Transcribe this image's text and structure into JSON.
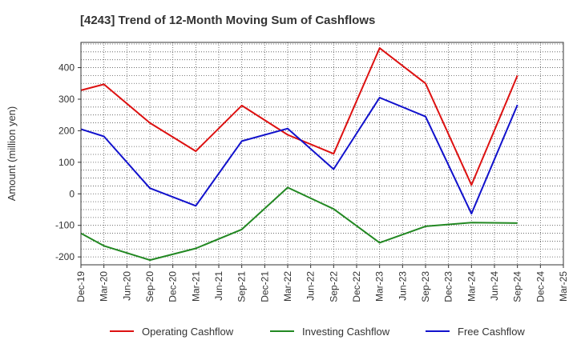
{
  "chart_data": {
    "type": "line",
    "title": "[4243]  Trend of 12-Month Moving Sum of Cashflows",
    "xlabel": "",
    "ylabel": "Amount (million yen)",
    "ylim": [
      -225,
      480
    ],
    "yticks": [
      -200,
      -100,
      0,
      100,
      200,
      300,
      400
    ],
    "categories": [
      "Dec-19",
      "Mar-20",
      "Jun-20",
      "Sep-20",
      "Dec-20",
      "Mar-21",
      "Jun-21",
      "Sep-21",
      "Dec-21",
      "Mar-22",
      "Jun-22",
      "Sep-22",
      "Dec-22",
      "Mar-23",
      "Jun-23",
      "Sep-23",
      "Dec-23",
      "Mar-24",
      "Jun-24",
      "Sep-24",
      "Dec-24",
      "Mar-25"
    ],
    "grid": true,
    "legend_position": "bottom",
    "series": [
      {
        "name": "Operating Cashflow",
        "color": "#dd1111",
        "points": [
          {
            "x": "Dec-19",
            "y": 328
          },
          {
            "x": "Mar-20",
            "y": 347
          },
          {
            "x": "Sep-20",
            "y": 225
          },
          {
            "x": "Mar-21",
            "y": 135
          },
          {
            "x": "Sep-21",
            "y": 280
          },
          {
            "x": "Mar-22",
            "y": 187
          },
          {
            "x": "Sep-22",
            "y": 127
          },
          {
            "x": "Mar-23",
            "y": 462
          },
          {
            "x": "Sep-23",
            "y": 350
          },
          {
            "x": "Mar-24",
            "y": 28
          },
          {
            "x": "Sep-24",
            "y": 375
          }
        ]
      },
      {
        "name": "Investing Cashflow",
        "color": "#228822",
        "points": [
          {
            "x": "Dec-19",
            "y": -125
          },
          {
            "x": "Mar-20",
            "y": -165
          },
          {
            "x": "Sep-20",
            "y": -210
          },
          {
            "x": "Mar-21",
            "y": -173
          },
          {
            "x": "Sep-21",
            "y": -113
          },
          {
            "x": "Mar-22",
            "y": 20
          },
          {
            "x": "Sep-22",
            "y": -48
          },
          {
            "x": "Mar-23",
            "y": -155
          },
          {
            "x": "Sep-23",
            "y": -103
          },
          {
            "x": "Mar-24",
            "y": -91
          },
          {
            "x": "Sep-24",
            "y": -93
          }
        ]
      },
      {
        "name": "Free Cashflow",
        "color": "#1111cc",
        "points": [
          {
            "x": "Dec-19",
            "y": 205
          },
          {
            "x": "Mar-20",
            "y": 182
          },
          {
            "x": "Sep-20",
            "y": 18
          },
          {
            "x": "Mar-21",
            "y": -38
          },
          {
            "x": "Sep-21",
            "y": 167
          },
          {
            "x": "Mar-22",
            "y": 207
          },
          {
            "x": "Sep-22",
            "y": 78
          },
          {
            "x": "Mar-23",
            "y": 305
          },
          {
            "x": "Sep-23",
            "y": 245
          },
          {
            "x": "Mar-24",
            "y": -63
          },
          {
            "x": "Sep-24",
            "y": 282
          }
        ]
      }
    ]
  }
}
